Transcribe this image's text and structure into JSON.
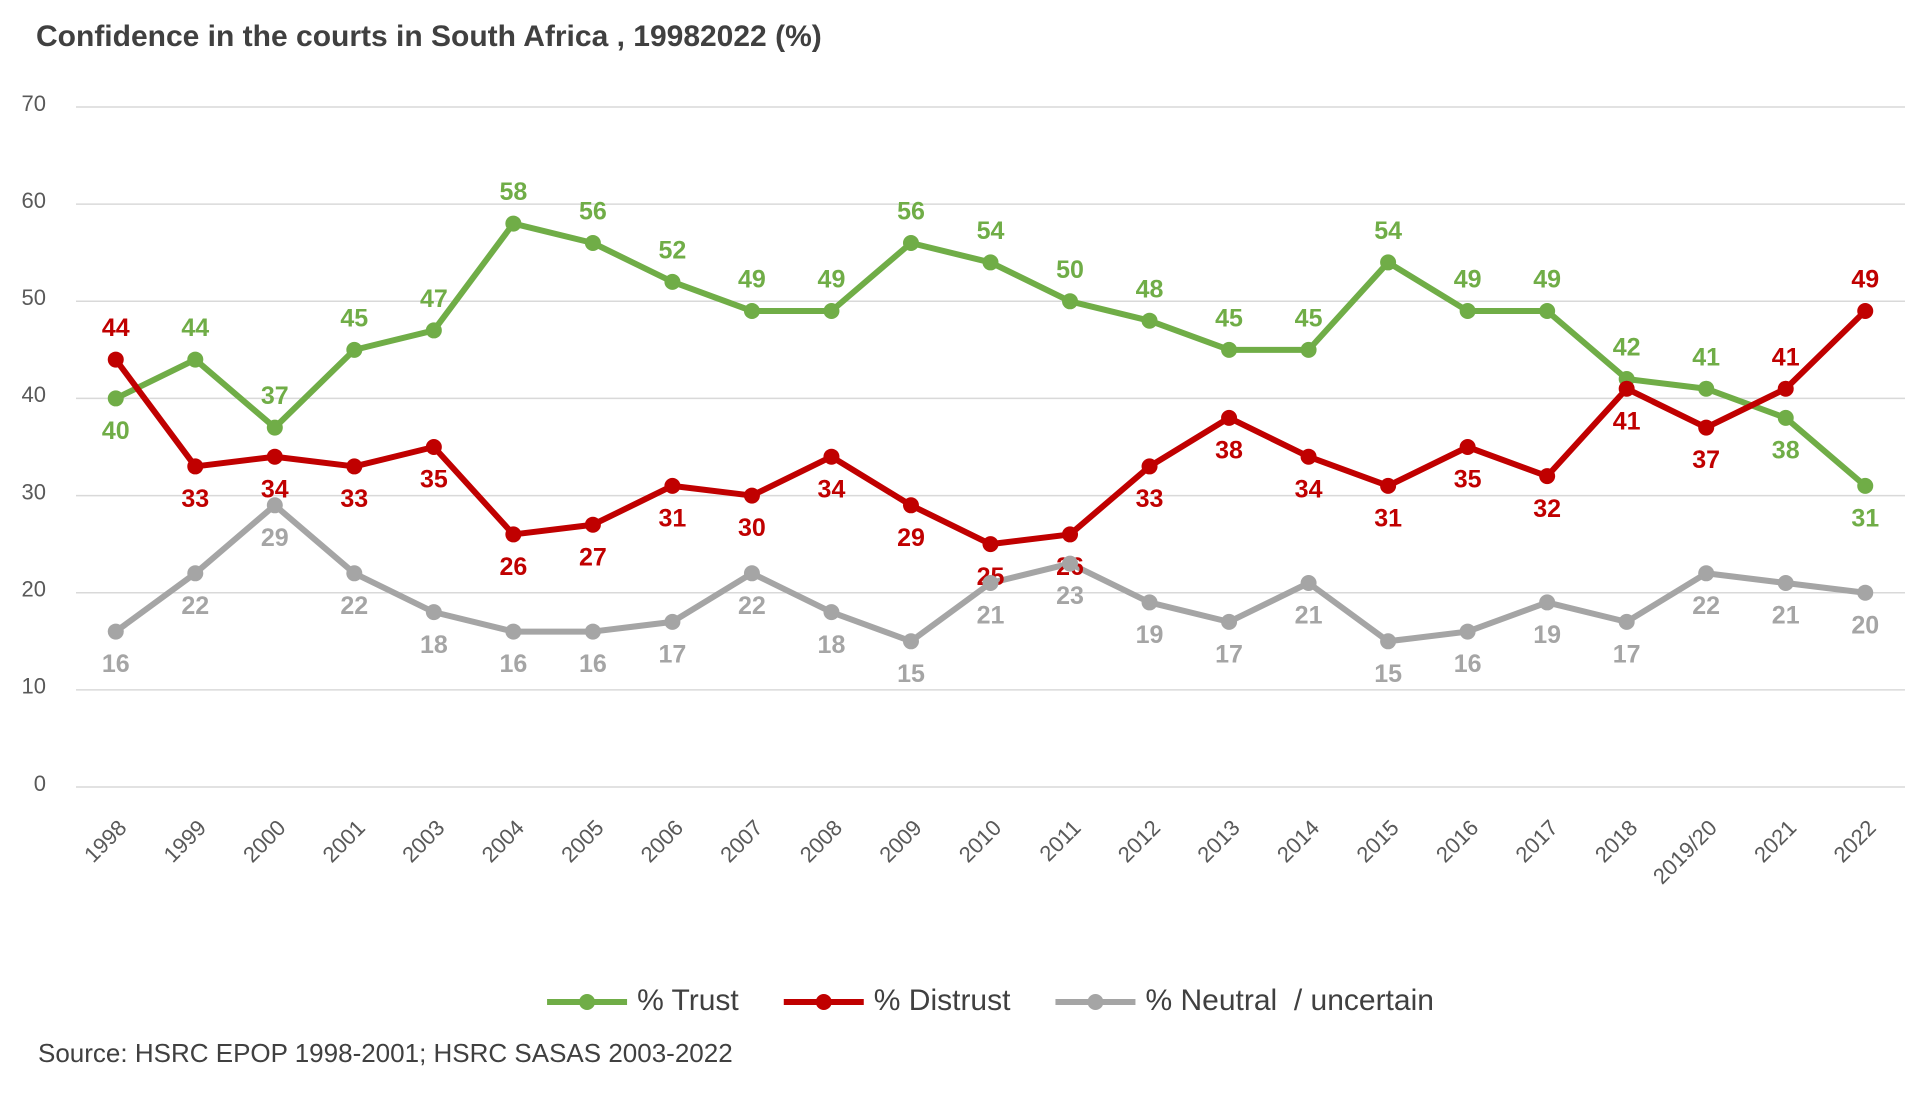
{
  "chart_data": {
    "type": "line",
    "title": "Confidence in the courts in South Africa , 19982022 (%)",
    "source": "Source: HSRC EPOP 1998-2001; HSRC SASAS 2003-2022",
    "categories": [
      "1998",
      "1999",
      "2000",
      "2001",
      "2003",
      "2004",
      "2005",
      "2006",
      "2007",
      "2008",
      "2009",
      "2010",
      "2011",
      "2012",
      "2013",
      "2014",
      "2015",
      "2016",
      "2017",
      "2018",
      "2019/20",
      "2021",
      "2022"
    ],
    "series": [
      {
        "name": "% Trust",
        "color": "#70ad47",
        "values": [
          40,
          44,
          37,
          45,
          47,
          58,
          56,
          52,
          49,
          49,
          56,
          54,
          50,
          48,
          45,
          45,
          54,
          49,
          49,
          42,
          41,
          38,
          31
        ]
      },
      {
        "name": "% Distrust",
        "color": "#c00000",
        "values": [
          44,
          33,
          34,
          33,
          35,
          26,
          27,
          31,
          30,
          34,
          29,
          25,
          26,
          33,
          38,
          34,
          31,
          35,
          32,
          41,
          37,
          41,
          49
        ]
      },
      {
        "name": "% Neutral  / uncertain",
        "color": "#a5a5a5",
        "values": [
          16,
          22,
          29,
          22,
          18,
          16,
          16,
          17,
          22,
          18,
          15,
          21,
          23,
          19,
          17,
          21,
          15,
          16,
          19,
          17,
          22,
          21,
          20
        ]
      }
    ],
    "ylim": [
      0,
      70
    ],
    "yticks": [
      0,
      10,
      20,
      30,
      40,
      50,
      60,
      70
    ],
    "grid": true,
    "legend": "bottom"
  }
}
